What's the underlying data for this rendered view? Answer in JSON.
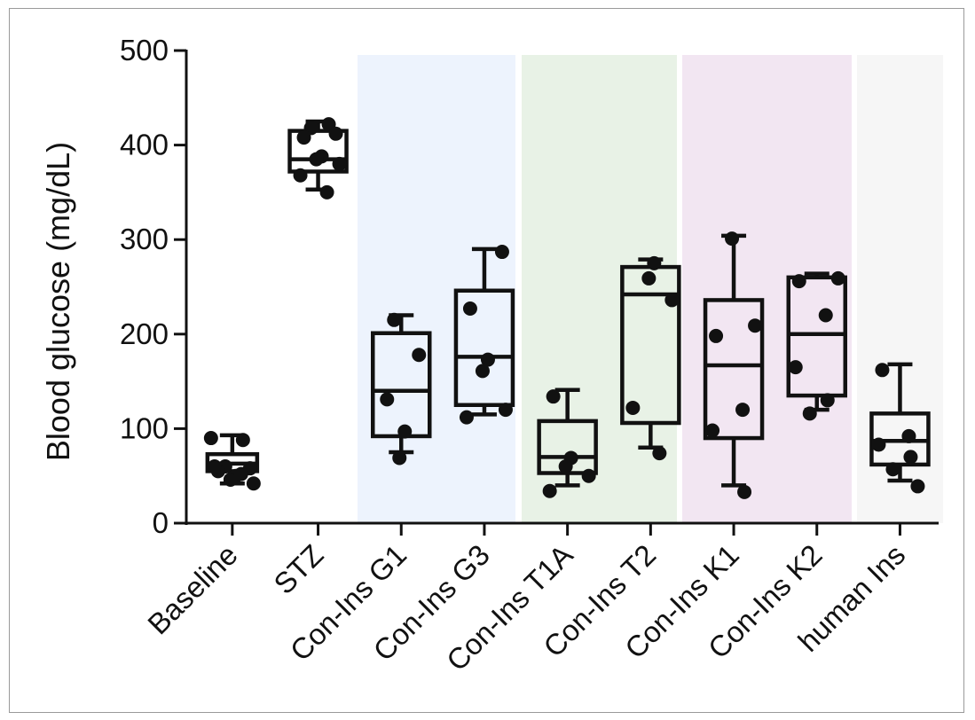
{
  "chart_data": {
    "type": "box",
    "title": "",
    "xlabel": "",
    "ylabel": "Blood glucose (mg/dL)",
    "ylim": [
      0,
      500
    ],
    "yticks": [
      "0",
      "100",
      "200",
      "300",
      "400",
      "500"
    ],
    "categories": [
      "Baseline",
      "STZ",
      "Con-Ins G1",
      "Con-Ins G3",
      "Con-Ins T1A",
      "Con-Ins T2",
      "Con-Ins K1",
      "Con-Ins K2",
      "human Ins"
    ],
    "shaded_groups": [
      {
        "from": 2,
        "to": 3,
        "color": "#edf3fd"
      },
      {
        "from": 4,
        "to": 5,
        "color": "#e8f2e6"
      },
      {
        "from": 6,
        "to": 7,
        "color": "#f2e6f2"
      },
      {
        "from": 8,
        "to": 8,
        "color": "#f6f6f6"
      }
    ],
    "boxes": [
      {
        "min": 42,
        "q1": 55,
        "median": 63,
        "q3": 73,
        "max": 93
      },
      {
        "min": 353,
        "q1": 372,
        "median": 385,
        "q3": 415,
        "max": 425
      },
      {
        "min": 75,
        "q1": 92,
        "median": 140,
        "q3": 201,
        "max": 220
      },
      {
        "min": 115,
        "q1": 125,
        "median": 176,
        "q3": 246,
        "max": 290
      },
      {
        "min": 40,
        "q1": 53,
        "median": 70,
        "q3": 108,
        "max": 141
      },
      {
        "min": 80,
        "q1": 106,
        "median": 242,
        "q3": 271,
        "max": 279
      },
      {
        "min": 40,
        "q1": 90,
        "median": 167,
        "q3": 236,
        "max": 304
      },
      {
        "min": 120,
        "q1": 135,
        "median": 200,
        "q3": 260,
        "max": 264
      },
      {
        "min": 45,
        "q1": 62,
        "median": 87,
        "q3": 116,
        "max": 168
      }
    ],
    "points": [
      [
        90,
        88,
        60,
        58,
        55,
        50,
        46,
        42,
        60,
        52
      ],
      [
        422,
        418,
        412,
        408,
        388,
        385,
        380,
        368,
        350
      ],
      [
        215,
        178,
        131,
        97,
        69
      ],
      [
        287,
        227,
        173,
        161,
        120,
        112
      ],
      [
        134,
        69,
        60,
        50,
        34
      ],
      [
        275,
        259,
        236,
        122,
        74
      ],
      [
        301,
        209,
        198,
        120,
        98,
        33
      ],
      [
        259,
        256,
        220,
        165,
        130,
        116
      ],
      [
        162,
        92,
        83,
        70,
        57,
        39
      ]
    ],
    "point_color": "#111111",
    "box_color": "#111111"
  }
}
